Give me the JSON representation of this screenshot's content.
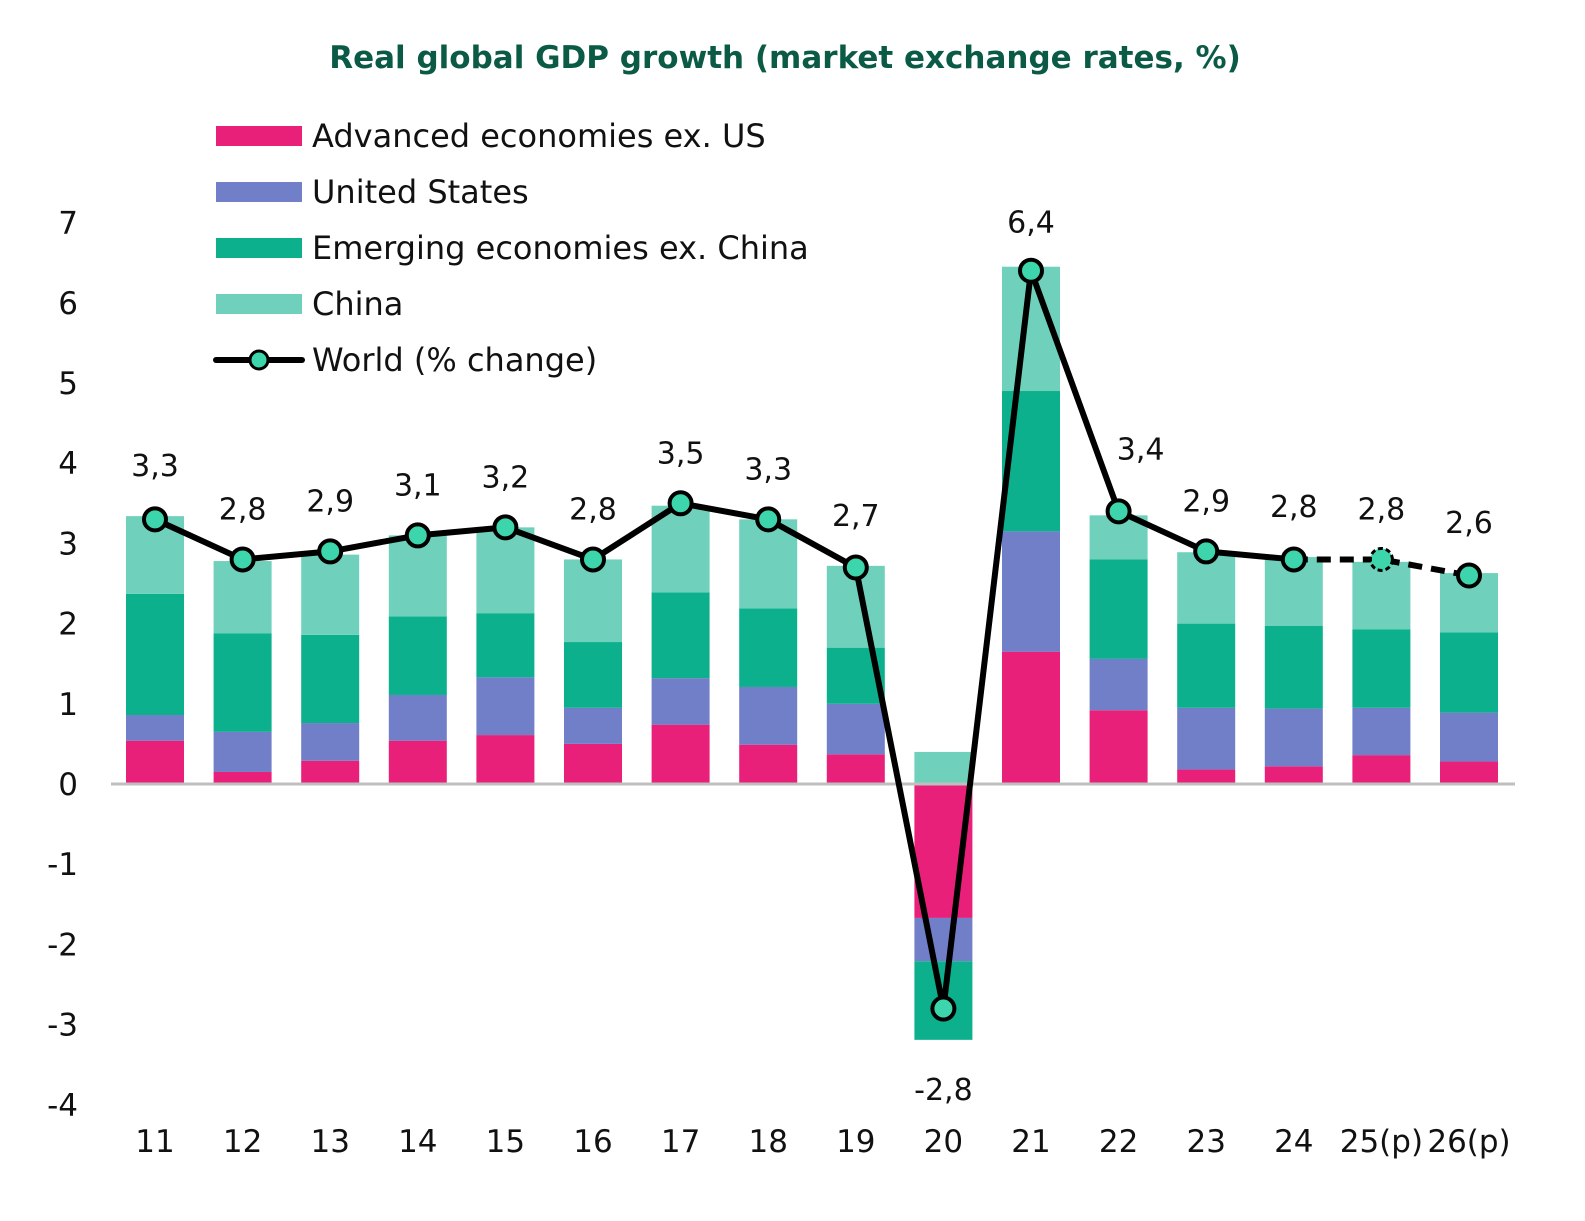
{
  "chart_data": {
    "type": "bar",
    "subtype": "stacked bar with line overlay",
    "title": "Real global GDP growth (market exchange rates, %)",
    "xlabel": "",
    "ylabel": "",
    "ylim": [
      -4,
      7
    ],
    "yticks": [
      "7",
      "6",
      "5",
      "4",
      "3",
      "2",
      "1",
      "0",
      "-1",
      "-2",
      "-3",
      "-4"
    ],
    "ytick_values": [
      7,
      6,
      5,
      4,
      3,
      2,
      1,
      0,
      -1,
      -2,
      -3,
      -4
    ],
    "grid": false,
    "legend_position": "top-left",
    "categories": [
      "11",
      "12",
      "13",
      "14",
      "15",
      "16",
      "17",
      "18",
      "19",
      "20",
      "21",
      "22",
      "23",
      "24",
      "25(p)",
      "26(p)"
    ],
    "series": [
      {
        "name": "Advanced economies ex. US",
        "kind": "bar",
        "color": "#e8207a",
        "values": [
          0.54,
          0.15,
          0.29,
          0.54,
          0.61,
          0.5,
          0.74,
          0.49,
          0.37,
          -1.67,
          1.65,
          0.92,
          0.18,
          0.22,
          0.36,
          0.28
        ]
      },
      {
        "name": "United States",
        "kind": "bar",
        "color": "#717fc8",
        "values": [
          0.32,
          0.5,
          0.47,
          0.57,
          0.72,
          0.45,
          0.58,
          0.72,
          0.63,
          -0.54,
          1.5,
          0.64,
          0.77,
          0.72,
          0.59,
          0.61
        ]
      },
      {
        "name": "Emerging economies ex. China",
        "kind": "bar",
        "color": "#0db08c",
        "values": [
          1.51,
          1.23,
          1.1,
          0.98,
          0.8,
          0.82,
          1.07,
          0.98,
          0.7,
          -0.98,
          1.75,
          1.24,
          1.05,
          1.03,
          0.98,
          1.0
        ]
      },
      {
        "name": "China",
        "kind": "bar",
        "color": "#6fd1bb",
        "values": [
          0.97,
          0.9,
          1.0,
          1.01,
          1.07,
          1.03,
          1.08,
          1.11,
          1.02,
          0.4,
          1.55,
          0.55,
          0.89,
          0.86,
          0.84,
          0.74
        ]
      },
      {
        "name": "World (% change)",
        "kind": "line",
        "color": "#000000",
        "marker_color": "#3dd6ac",
        "values": [
          3.3,
          2.8,
          2.9,
          3.1,
          3.2,
          2.8,
          3.5,
          3.3,
          2.7,
          -2.8,
          6.4,
          3.4,
          2.9,
          2.8,
          2.8,
          2.6
        ],
        "labels": [
          "3,3",
          "2,8",
          "2,9",
          "3,1",
          "3,2",
          "2,8",
          "3,5",
          "3,3",
          "2,7",
          "-2,8",
          "6,4",
          "3,4",
          "2,9",
          "2,8",
          "2,8",
          "2,6"
        ],
        "projected_from_index": 13
      }
    ]
  }
}
